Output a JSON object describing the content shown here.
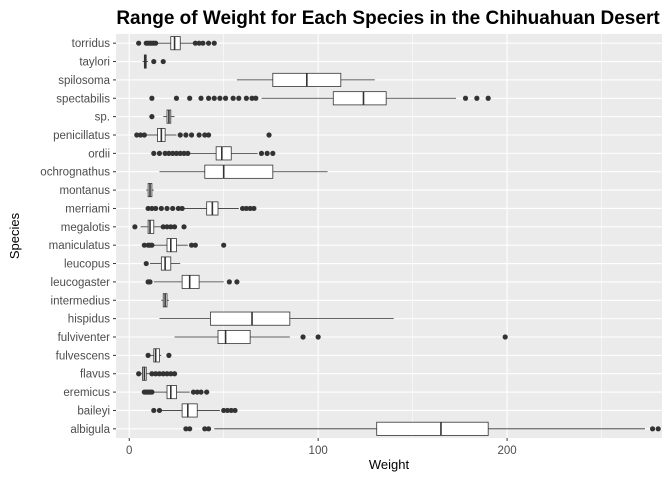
{
  "chart_data": {
    "type": "boxplot",
    "orientation": "horizontal",
    "title": "Range of Weight for Each Species in the Chihuahuan Desert",
    "xlabel": "Weight",
    "ylabel": "Species",
    "xlim": [
      -7,
      282
    ],
    "x_ticks": [
      0,
      100,
      200
    ],
    "x_minor_ticks": [
      50,
      150,
      250
    ],
    "grid": true,
    "colors": {
      "panel_bg": "#EBEBEB",
      "grid": "#FFFFFF",
      "box_fill": "#FFFFFF",
      "box_stroke": "#333333",
      "outlier": "#333333"
    },
    "categories": [
      "torridus",
      "taylori",
      "spilosoma",
      "spectabilis",
      "sp.",
      "penicillatus",
      "ordii",
      "ochrognathus",
      "montanus",
      "merriami",
      "megalotis",
      "maniculatus",
      "leucopus",
      "leucogaster",
      "intermedius",
      "hispidus",
      "fulviventer",
      "fulvescens",
      "flavus",
      "eremicus",
      "baileyi",
      "albigula"
    ],
    "boxes": [
      {
        "species": "torridus",
        "min": 15,
        "q1": 22,
        "median": 24,
        "q3": 27,
        "max": 34,
        "outliers": [
          5,
          9,
          10,
          11,
          12,
          13,
          14,
          35,
          37,
          39,
          42,
          45
        ]
      },
      {
        "species": "taylori",
        "min": 7,
        "q1": 8,
        "median": 8.5,
        "q3": 9,
        "max": 10,
        "outliers": [
          13,
          18
        ]
      },
      {
        "species": "spilosoma",
        "min": 57,
        "q1": 76,
        "median": 94,
        "q3": 112,
        "max": 130,
        "outliers": []
      },
      {
        "species": "spectabilis",
        "min": 70,
        "q1": 108,
        "median": 124,
        "q3": 136,
        "max": 173,
        "outliers": [
          12,
          25,
          32,
          38,
          42,
          45,
          48,
          51,
          55,
          58,
          62,
          65,
          67,
          178,
          184,
          190
        ]
      },
      {
        "species": "sp.",
        "min": 18,
        "q1": 20,
        "median": 21,
        "q3": 22,
        "max": 24,
        "outliers": [
          12
        ]
      },
      {
        "species": "penicillatus",
        "min": 9,
        "q1": 15,
        "median": 17,
        "q3": 19,
        "max": 25,
        "outliers": [
          4,
          6,
          8,
          27,
          30,
          33,
          37,
          40,
          42,
          74
        ]
      },
      {
        "species": "ordii",
        "min": 32,
        "q1": 46,
        "median": 49,
        "q3": 54,
        "max": 68,
        "outliers": [
          13,
          16,
          19,
          21,
          23,
          25,
          27,
          29,
          31,
          70,
          73,
          76
        ]
      },
      {
        "species": "ochrognathus",
        "min": 16,
        "q1": 40,
        "median": 50,
        "q3": 76,
        "max": 105,
        "outliers": []
      },
      {
        "species": "montanus",
        "min": 9,
        "q1": 10,
        "median": 11,
        "q3": 12,
        "max": 13,
        "outliers": []
      },
      {
        "species": "merriami",
        "min": 29,
        "q1": 41,
        "median": 44,
        "q3": 47,
        "max": 58,
        "outliers": [
          10,
          12,
          14,
          17,
          20,
          23,
          26,
          28,
          60,
          62,
          64,
          66
        ]
      },
      {
        "species": "megalotis",
        "min": 6,
        "q1": 10,
        "median": 11,
        "q3": 13,
        "max": 17,
        "outliers": [
          3,
          18,
          20,
          22,
          24,
          29
        ]
      },
      {
        "species": "maniculatus",
        "min": 13,
        "q1": 20,
        "median": 22,
        "q3": 25,
        "max": 31,
        "outliers": [
          8,
          10,
          11,
          12,
          33,
          35,
          50
        ]
      },
      {
        "species": "leucopus",
        "min": 11,
        "q1": 17,
        "median": 19,
        "q3": 22,
        "max": 27,
        "outliers": [
          9
        ]
      },
      {
        "species": "leucogaster",
        "min": 13,
        "q1": 28,
        "median": 32,
        "q3": 37,
        "max": 50,
        "outliers": [
          10,
          11,
          53,
          57
        ]
      },
      {
        "species": "intermedius",
        "min": 17,
        "q1": 18,
        "median": 19,
        "q3": 20,
        "max": 21,
        "outliers": []
      },
      {
        "species": "hispidus",
        "min": 16,
        "q1": 43,
        "median": 65,
        "q3": 85,
        "max": 140,
        "outliers": []
      },
      {
        "species": "fulviventer",
        "min": 24,
        "q1": 47,
        "median": 51,
        "q3": 64,
        "max": 85,
        "outliers": [
          92,
          100,
          199
        ]
      },
      {
        "species": "fulvescens",
        "min": 11,
        "q1": 13,
        "median": 14,
        "q3": 16,
        "max": 17,
        "outliers": [
          10,
          21
        ]
      },
      {
        "species": "flavus",
        "min": 6,
        "q1": 7,
        "median": 8,
        "q3": 9,
        "max": 11,
        "outliers": [
          5,
          12,
          14,
          16,
          18,
          20,
          22,
          24
        ]
      },
      {
        "species": "eremicus",
        "min": 13,
        "q1": 20,
        "median": 22,
        "q3": 25,
        "max": 32,
        "outliers": [
          8,
          9,
          10,
          11,
          12,
          34,
          36,
          38,
          41
        ]
      },
      {
        "species": "baileyi",
        "min": 17,
        "q1": 28,
        "median": 31,
        "q3": 36,
        "max": 48,
        "outliers": [
          13,
          16,
          50,
          52,
          54,
          56
        ]
      },
      {
        "species": "albigula",
        "min": 45,
        "q1": 131,
        "median": 165,
        "q3": 190,
        "max": 273,
        "outliers": [
          30,
          32,
          40,
          42,
          277,
          280
        ]
      }
    ]
  }
}
